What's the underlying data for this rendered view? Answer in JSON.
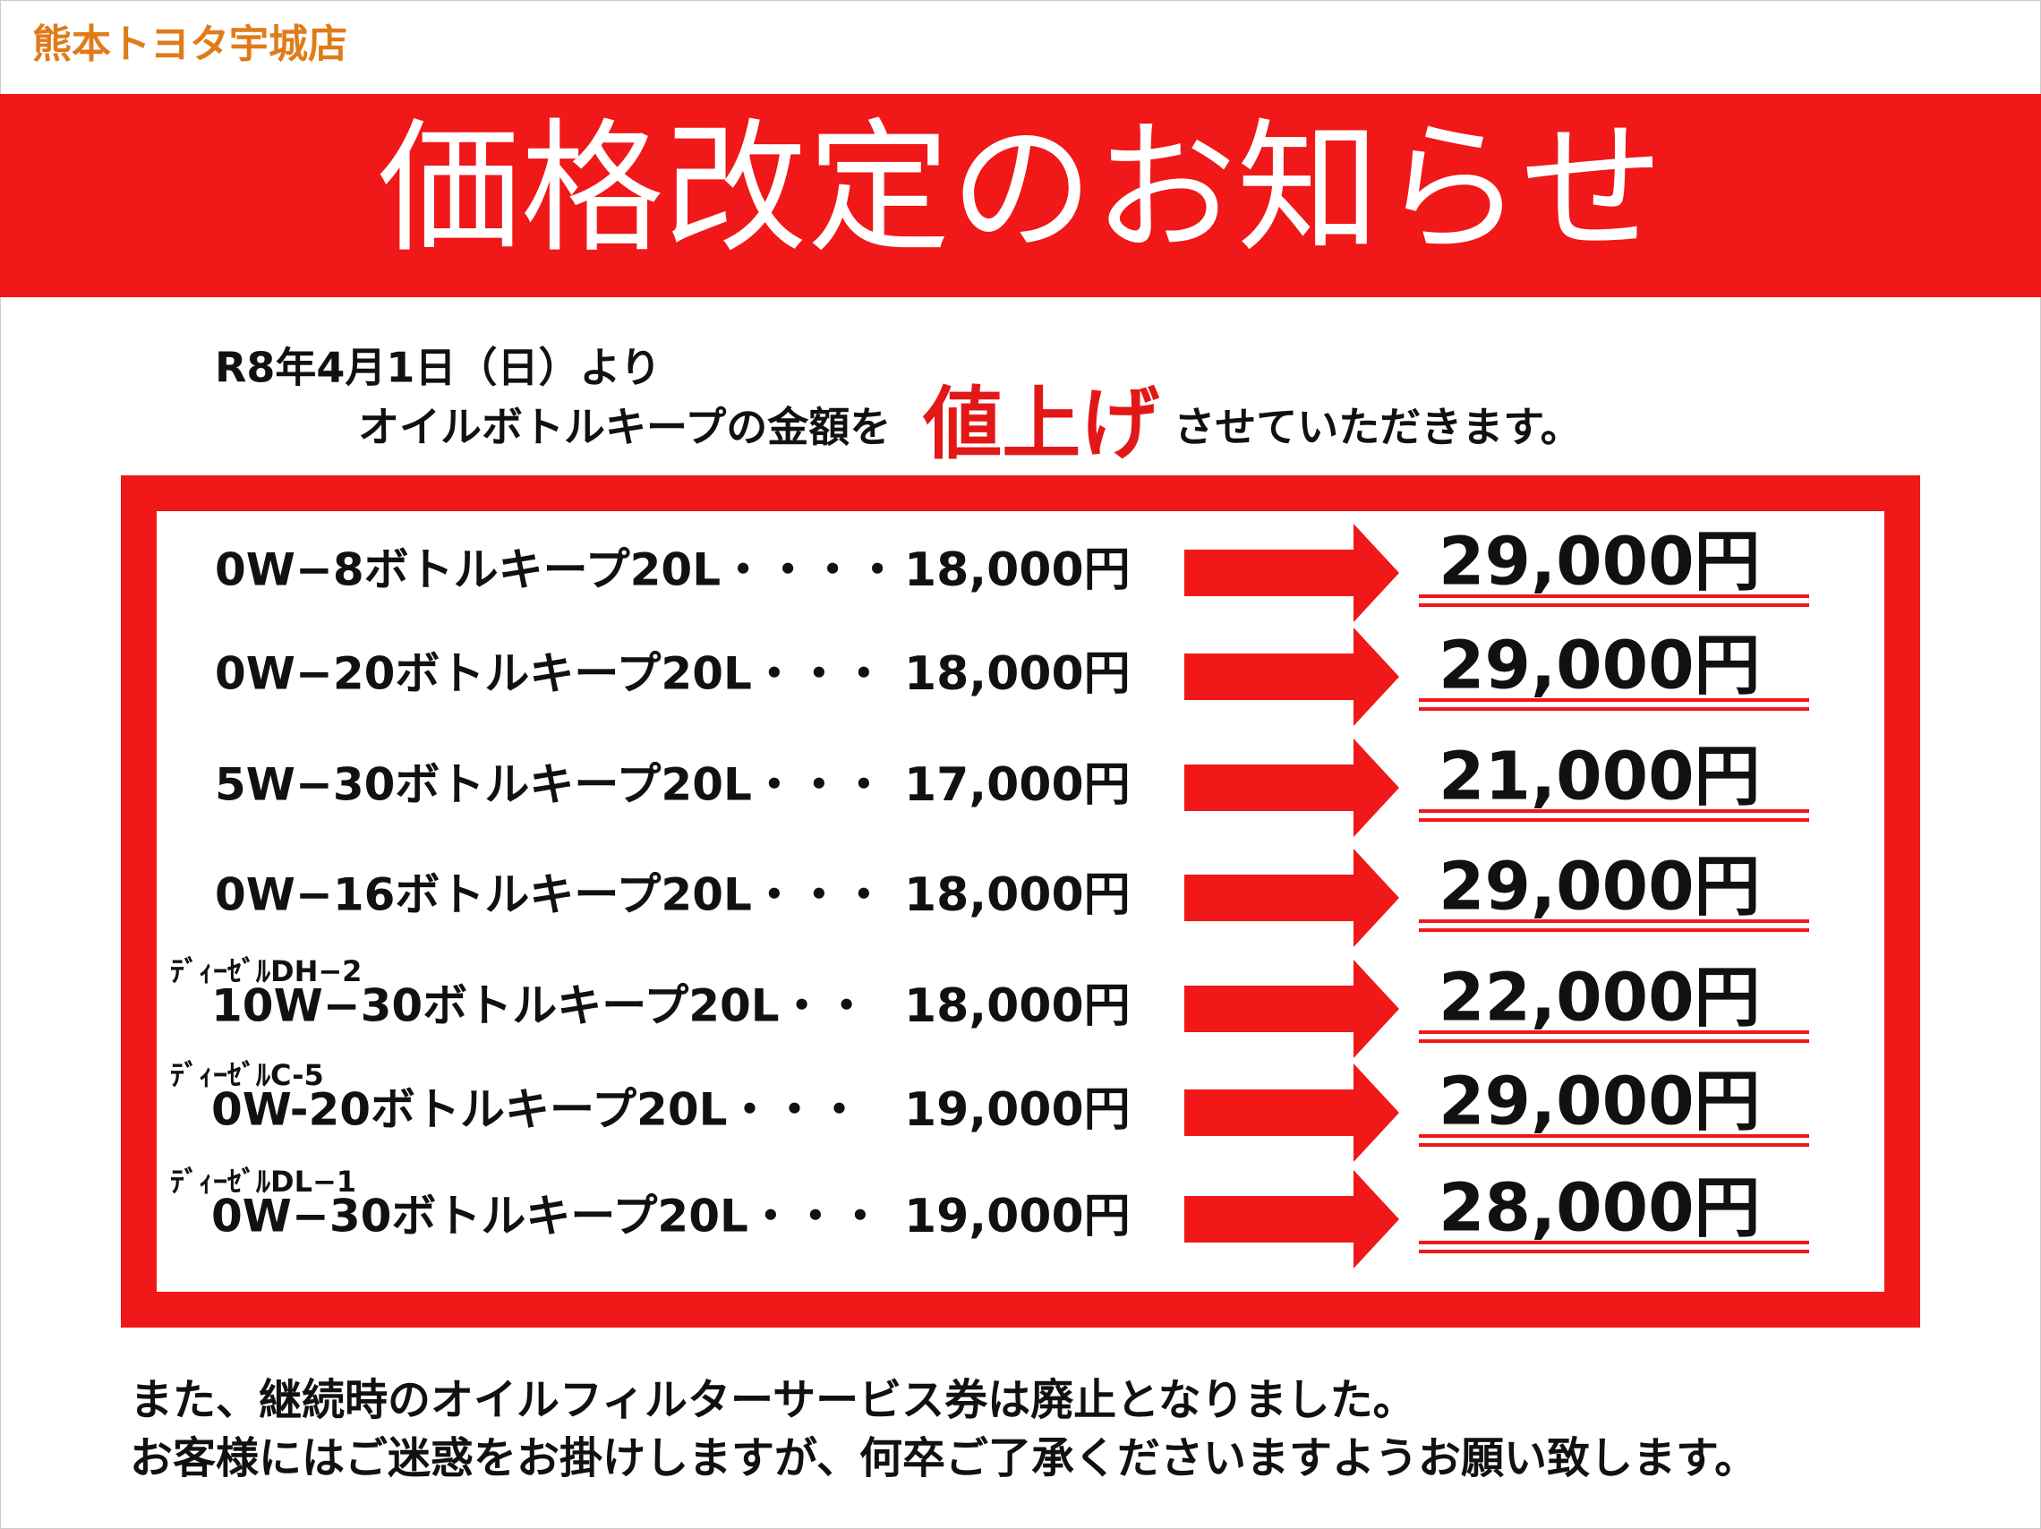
{
  "header": {
    "store": "熊本トヨタ宇城店",
    "title": "価格改定のお知らせ"
  },
  "intro": {
    "line1": "R8年4月1日（日）より",
    "line2_before": "オイルボトルキープの金額を",
    "emphasis": "値上げ",
    "line2_after": "させていただきます。"
  },
  "items": [
    {
      "name": "0W−8ボトルキープ20L・・・・",
      "old_price": "18,000円",
      "new_price": "29,000円"
    },
    {
      "name": "0W−20ボトルキープ20L・・・",
      "old_price": "18,000円",
      "new_price": "29,000円"
    },
    {
      "name": "5W−30ボトルキープ20L・・・",
      "old_price": "17,000円",
      "new_price": "21,000円"
    },
    {
      "name": "0W−16ボトルキープ20L・・・",
      "old_price": "18,000円",
      "new_price": "29,000円"
    },
    {
      "prefix": "ﾃﾞｨｰｾﾞﾙDH−2",
      "name": "10W−30ボトルキープ20L・・",
      "old_price": "18,000円",
      "new_price": "22,000円"
    },
    {
      "prefix": "ﾃﾞｨｰｾﾞﾙC-5",
      "name": "0W-20ボトルキープ20L・・・",
      "old_price": "19,000円",
      "new_price": "29,000円"
    },
    {
      "prefix": "ﾃﾞｨｰｾﾞﾙDL−1",
      "name": "0W−30ボトルキープ20L・・・",
      "old_price": "19,000円",
      "new_price": "28,000円"
    }
  ],
  "footer": {
    "line1": "また、継続時のオイルフィルターサービス券は廃止となりました。",
    "line2": "お客様にはご迷惑をお掛けしますが、何卒ご了承くださいますようお願い致します。"
  }
}
